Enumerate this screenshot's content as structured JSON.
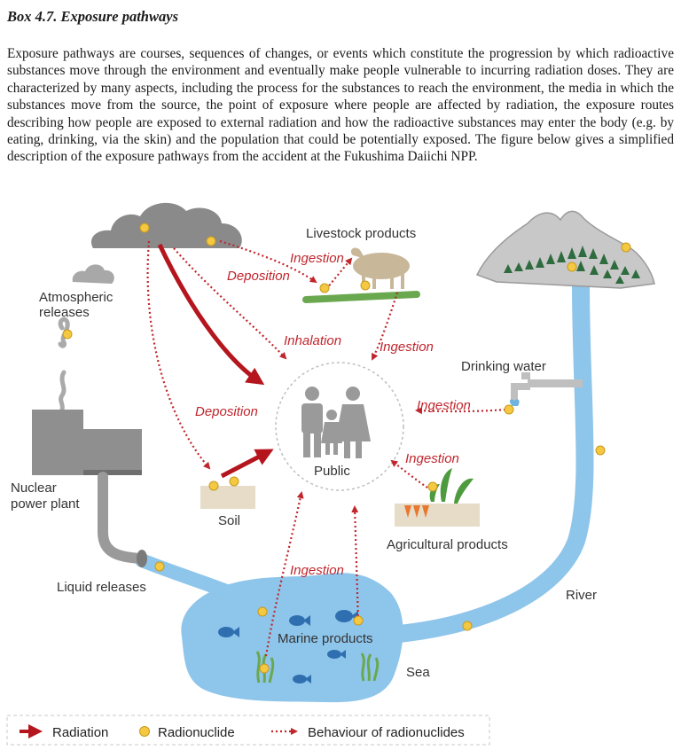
{
  "box": {
    "title": "Box 4.7. Exposure pathways",
    "paragraph": "Exposure pathways are courses, sequences of changes, or events which constitute the progression by which radioactive substances move through the environment and eventually make people vulnerable to incurring radiation doses. They are characterized by many aspects, including the process for the substances to reach the environment, the media in which the substances move from the source, the point of exposure where people are affected by radiation, the exposure routes describing how people are exposed to external radiation and how the radioactive substances may enter the body (e.g. by eating, drinking, via the skin) and the population that could be potentially exposed. The figure below gives a simplified description of the exposure pathways from the accident at the Fukushima Daiichi NPP."
  },
  "diagram": {
    "nodes": {
      "atmospheric": "Atmospheric releases",
      "atmospheric_line1": "Atmospheric",
      "atmospheric_line2": "releases",
      "npp_line1": "Nuclear",
      "npp_line2": "power plant",
      "liquid": "Liquid releases",
      "livestock": "Livestock products",
      "drinking": "Drinking water",
      "public": "Public",
      "soil": "Soil",
      "agricultural": "Agricultural products",
      "river": "River",
      "marine": "Marine products",
      "sea": "Sea"
    },
    "pathways": {
      "ingestion_livestock": "Ingestion",
      "deposition_pasture": "Deposition",
      "inhalation": "Inhalation",
      "ingestion_livestock_public": "Ingestion",
      "deposition_soil": "Deposition",
      "ingestion_water": "Ingestion",
      "ingestion_agri": "Ingestion",
      "ingestion_marine": "Ingestion"
    },
    "legend": {
      "radiation": "Radiation",
      "radionuclide": "Radionuclide",
      "behaviour": "Behaviour of radionuclides"
    },
    "colors": {
      "radiation": "#b5161e",
      "pathway": "#c0262d",
      "radionuclide": "#f5c842",
      "water": "#8ec5ea",
      "cloud": "#8a8a8a",
      "people": "#9a9a9a"
    }
  }
}
